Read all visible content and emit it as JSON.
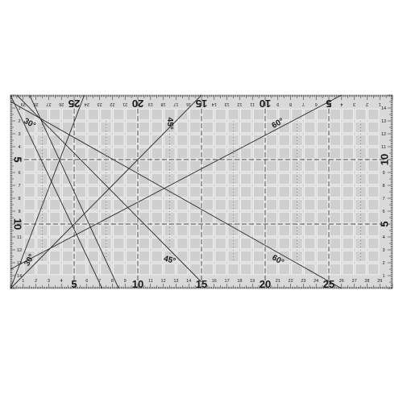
{
  "ruler": {
    "kind": "rectangular quilting ruler",
    "units": "cm",
    "width_cm": 30,
    "height_cm": 15,
    "colors": {
      "background": "#ffffff",
      "acrylic": "#d9d9d9",
      "grid_square": "#cfcfcf",
      "grid_line": "#f4f4f4",
      "mark": "#1a1a1a"
    },
    "top_edge_labels": [
      {
        "cm": 5,
        "label": "25"
      },
      {
        "cm": 10,
        "label": "20"
      },
      {
        "cm": 15,
        "label": "15"
      },
      {
        "cm": 20,
        "label": "10"
      },
      {
        "cm": 25,
        "label": "5"
      }
    ],
    "bottom_edge_labels": [
      {
        "cm": 5,
        "label": "5"
      },
      {
        "cm": 10,
        "label": "10"
      },
      {
        "cm": 15,
        "label": "15"
      },
      {
        "cm": 20,
        "label": "20"
      },
      {
        "cm": 25,
        "label": "25"
      }
    ],
    "left_edge_labels": [
      {
        "cm": 5,
        "label": "5"
      },
      {
        "cm": 10,
        "label": "10"
      }
    ],
    "right_edge_labels": [
      {
        "cm": 5,
        "label": "10"
      },
      {
        "cm": 10,
        "label": "5"
      }
    ],
    "angle_labels": [
      {
        "id": "angle-30-top",
        "label": "30°",
        "cm_x": 1.5,
        "cm_y": 2.2,
        "rotate": 30
      },
      {
        "id": "angle-30-bottom",
        "label": "30°",
        "cm_x": 1.5,
        "cm_y": 12.8,
        "rotate": -60
      },
      {
        "id": "angle-45-top",
        "label": "45°",
        "cm_x": 12.5,
        "cm_y": 2.2,
        "rotate": 90
      },
      {
        "id": "angle-45-bottom",
        "label": "45°",
        "cm_x": 12.5,
        "cm_y": 12.8,
        "rotate": 15
      },
      {
        "id": "angle-60-top",
        "label": "60°",
        "cm_x": 21.0,
        "cm_y": 2.2,
        "rotate": -30
      },
      {
        "id": "angle-60-bottom",
        "label": "60°",
        "cm_x": 21.0,
        "cm_y": 12.8,
        "rotate": 30
      }
    ],
    "angle_lines": [
      {
        "id": "line-30-a",
        "from": [
          0,
          0
        ],
        "to": [
          7.2,
          15
        ]
      },
      {
        "id": "line-30-b",
        "from": [
          5.8,
          0
        ],
        "to": [
          0,
          15
        ]
      },
      {
        "id": "line-45-a",
        "from": [
          0.5,
          0
        ],
        "to": [
          15,
          14.5
        ]
      },
      {
        "id": "line-45-b",
        "from": [
          0,
          15
        ],
        "to": [
          15,
          0
        ]
      },
      {
        "id": "line-45-c",
        "from": [
          1.5,
          0
        ],
        "to": [
          8.5,
          15
        ]
      },
      {
        "id": "line-60-a",
        "from": [
          0,
          13.5
        ],
        "to": [
          26,
          0
        ]
      },
      {
        "id": "line-60-b",
        "from": [
          0,
          0.5
        ],
        "to": [
          26,
          15
        ]
      }
    ]
  }
}
